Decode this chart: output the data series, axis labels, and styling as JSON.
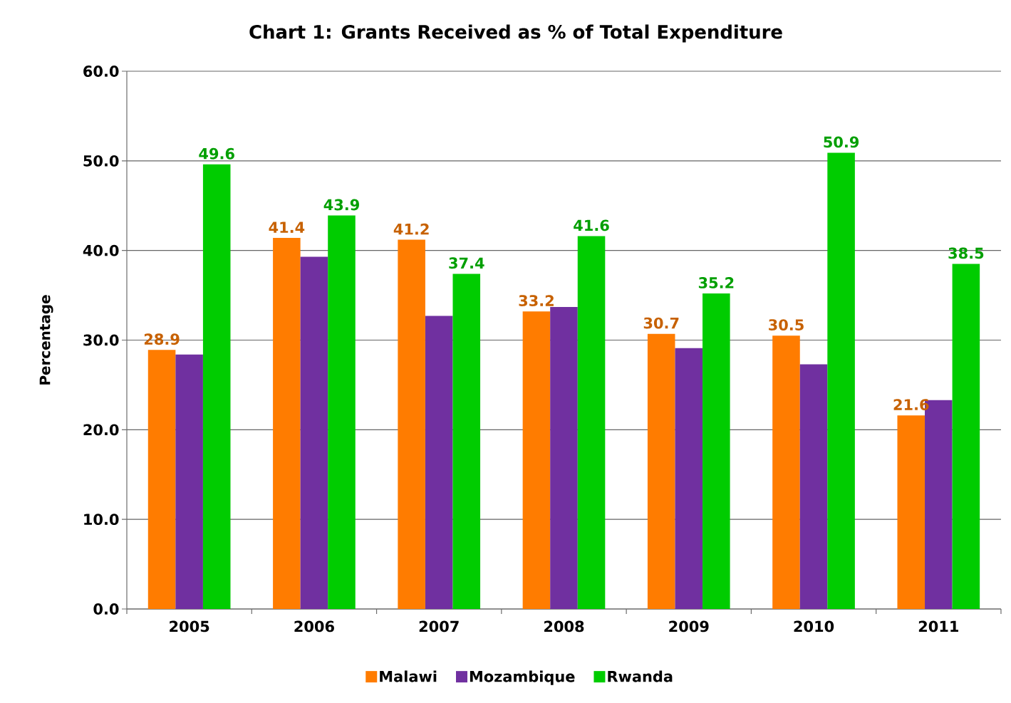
{
  "chart_data": {
    "type": "bar",
    "title": "Chart 1: Grants Received as % of Total Expenditure",
    "ylabel": "Percentage",
    "categories": [
      "2005",
      "2006",
      "2007",
      "2008",
      "2009",
      "2010",
      "2011"
    ],
    "series": [
      {
        "name": "Malawi",
        "color": "#ff7c00",
        "values": [
          28.9,
          41.4,
          41.2,
          33.2,
          30.7,
          30.5,
          21.6
        ],
        "value_labels": [
          "28.9",
          "41.4",
          "41.2",
          "33.2",
          "30.7",
          "30.5",
          "21.6"
        ]
      },
      {
        "name": "Mozambique",
        "color": "#7030a0",
        "values": [
          28.4,
          39.3,
          32.7,
          33.7,
          29.1,
          27.3,
          23.3
        ]
      },
      {
        "name": "Rwanda",
        "color": "#00cc00",
        "values": [
          49.6,
          43.9,
          37.4,
          41.6,
          35.2,
          50.9,
          38.5
        ],
        "value_labels": [
          "49.6",
          "43.9",
          "37.4",
          "41.6",
          "35.2",
          "50.9",
          "38.5"
        ]
      }
    ],
    "ylim": [
      0,
      60
    ],
    "yticks": [
      {
        "value": 0,
        "label": "0.0"
      },
      {
        "value": 10,
        "label": "10.0"
      },
      {
        "value": 20,
        "label": "20.0"
      },
      {
        "value": 30,
        "label": "30.0"
      },
      {
        "value": 40,
        "label": "40.0"
      },
      {
        "value": 50,
        "label": "50.0"
      },
      {
        "value": 60,
        "label": "60.0"
      }
    ],
    "grid": "y",
    "legend": "bottom"
  }
}
